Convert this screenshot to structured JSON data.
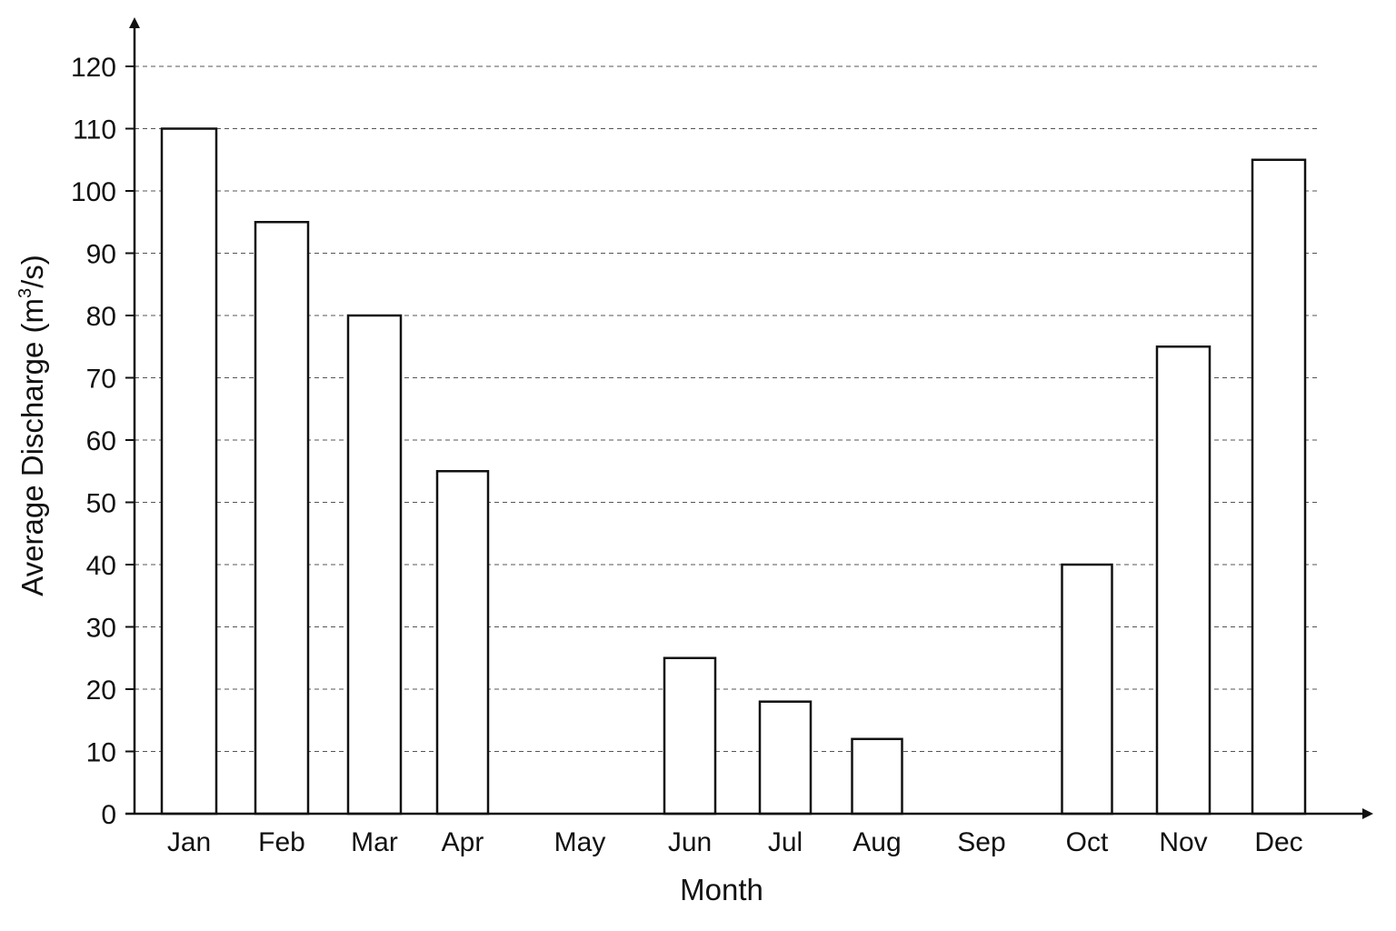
{
  "chart_data": {
    "type": "bar",
    "title": "",
    "xlabel": "Month",
    "ylabel_main": "Average Discharge (m",
    "ylabel_sup": "3",
    "ylabel_end": "/s)",
    "categories": [
      "Jan",
      "Feb",
      "Mar",
      "Apr",
      "May",
      "Jun",
      "Jul",
      "Aug",
      "Sep",
      "Oct",
      "Nov",
      "Dec"
    ],
    "values": [
      110,
      95,
      80,
      55,
      null,
      25,
      18,
      12,
      null,
      40,
      75,
      105
    ],
    "ylim": [
      0,
      120
    ],
    "yticks": [
      0,
      10,
      20,
      30,
      40,
      50,
      60,
      70,
      80,
      90,
      100,
      110,
      120
    ],
    "grid": true,
    "colors": {
      "bar_fill": "#ffffff",
      "bar_stroke": "#111111",
      "grid": "#555555",
      "axis": "#111111"
    }
  }
}
